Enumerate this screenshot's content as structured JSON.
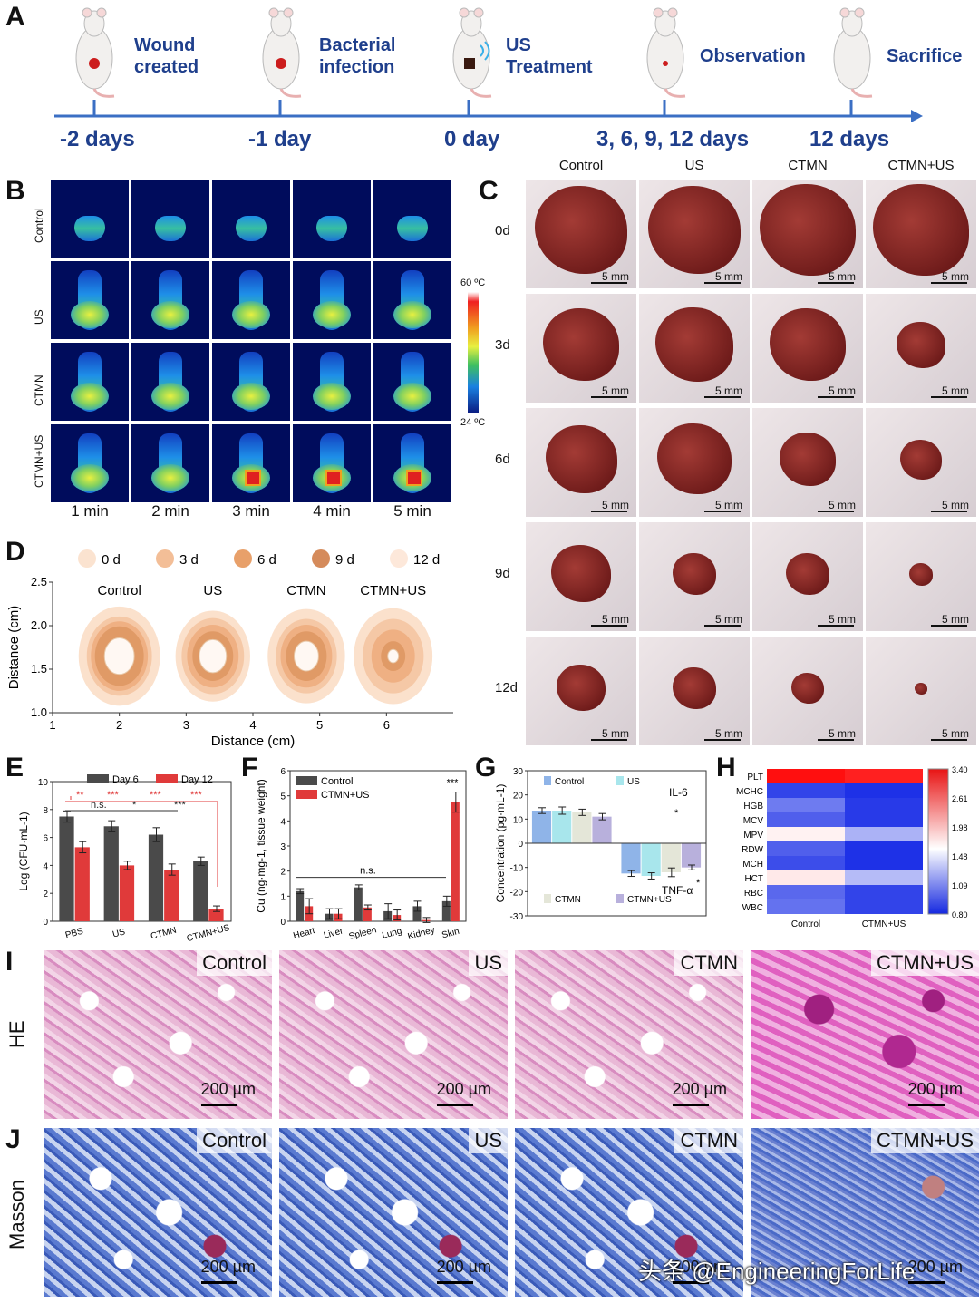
{
  "panel_labels": {
    "A": "A",
    "B": "B",
    "C": "C",
    "D": "D",
    "E": "E",
    "F": "F",
    "G": "G",
    "H": "H",
    "I": "I",
    "J": "J"
  },
  "timeline": {
    "events": [
      "Wound\ncreated",
      "Bacterial\ninfection",
      "US\nTreatment",
      "Observation",
      "Sacrifice"
    ],
    "days": [
      "-2 days",
      "-1 day",
      "0 day",
      "3, 6, 9, 12 days",
      "12 days"
    ],
    "colors": {
      "text": "#1f3f8c",
      "axis": "#3b6fc4"
    }
  },
  "thermal": {
    "rows": [
      "Control",
      "US",
      "CTMN",
      "CTMN+US"
    ],
    "times": [
      "1 min",
      "2 min",
      "3 min",
      "4 min",
      "5 min"
    ],
    "scale_max": "60 ºC",
    "scale_min": "24 ºC"
  },
  "wound_photos": {
    "columns": [
      "Control",
      "US",
      "CTMN",
      "CTMN+US"
    ],
    "rows": [
      "0d",
      "3d",
      "6d",
      "9d",
      "12d"
    ],
    "scale_bar": "5 mm",
    "wound_area_fraction": [
      [
        0.85,
        0.85,
        0.88,
        0.88
      ],
      [
        0.7,
        0.72,
        0.7,
        0.45
      ],
      [
        0.66,
        0.68,
        0.52,
        0.38
      ],
      [
        0.55,
        0.4,
        0.4,
        0.22
      ],
      [
        0.45,
        0.4,
        0.3,
        0.12
      ]
    ]
  },
  "chart_data": [
    {
      "id": "D",
      "type": "area",
      "legend": [
        "0 d",
        "3 d",
        "6 d",
        "9 d",
        "12 d"
      ],
      "groups": [
        "Control",
        "US",
        "CTMN",
        "CTMN+US"
      ],
      "xlabel": "Distance (cm)",
      "ylabel": "Distance (cm)",
      "xlim": [
        1,
        7
      ],
      "ylim": [
        1.0,
        2.5
      ],
      "x_ticks": [
        "1",
        "2",
        "3",
        "4",
        "5",
        "6"
      ],
      "y_ticks": [
        "1.0",
        "1.5",
        "2.0",
        "2.5"
      ],
      "group_centers_x": [
        2.0,
        3.4,
        4.8,
        6.1
      ],
      "center_y": 1.65,
      "radii_cm": [
        [
          0.6,
          0.48,
          0.42,
          0.36,
          0.22
        ],
        [
          0.55,
          0.46,
          0.38,
          0.3,
          0.2
        ],
        [
          0.57,
          0.45,
          0.38,
          0.3,
          0.18
        ],
        [
          0.58,
          0.45,
          0.32,
          0.18,
          0.08
        ]
      ]
    },
    {
      "id": "E",
      "type": "bar",
      "title": "",
      "ylabel": "Log (CFU·mL-1)",
      "ylim": [
        0,
        10
      ],
      "y_ticks": [
        "0",
        "2",
        "4",
        "6",
        "8",
        "10"
      ],
      "categories": [
        "PBS",
        "US",
        "CTMN",
        "CTMN+US"
      ],
      "series": [
        {
          "name": "Day 6",
          "color": "#4a4a4a",
          "values": [
            7.5,
            6.8,
            6.2,
            4.3
          ],
          "err": [
            0.4,
            0.4,
            0.5,
            0.3
          ]
        },
        {
          "name": "Day 12",
          "color": "#e03a3a",
          "values": [
            5.3,
            4.0,
            3.7,
            0.9
          ],
          "err": [
            0.4,
            0.3,
            0.4,
            0.2
          ]
        }
      ],
      "annotations": [
        "**",
        "***",
        "***",
        "***",
        "n.s.",
        "*",
        "***"
      ]
    },
    {
      "id": "F",
      "type": "bar",
      "ylabel": "Cu (ng·mg-1, tissue weight)",
      "ylim": [
        0,
        6
      ],
      "y_ticks": [
        "0",
        "1",
        "2",
        "3",
        "4",
        "5",
        "6"
      ],
      "categories": [
        "Heart",
        "Liver",
        "Spleen",
        "Lung",
        "Kidney",
        "Skin"
      ],
      "series": [
        {
          "name": "Control",
          "color": "#4a4a4a",
          "values": [
            1.2,
            0.3,
            1.35,
            0.4,
            0.6,
            0.8
          ],
          "err": [
            0.1,
            0.2,
            0.1,
            0.3,
            0.2,
            0.2
          ]
        },
        {
          "name": "CTMN+US",
          "color": "#e03a3a",
          "values": [
            0.6,
            0.3,
            0.55,
            0.25,
            0.05,
            4.75
          ],
          "err": [
            0.3,
            0.2,
            0.1,
            0.2,
            0.1,
            0.4
          ]
        }
      ],
      "annotations": [
        "n.s.",
        "***"
      ]
    },
    {
      "id": "G",
      "type": "bar",
      "ylabel": "Concentration (pg·mL-1)",
      "ylim": [
        -30,
        30
      ],
      "y_ticks": [
        "-30",
        "-20",
        "-10",
        "0",
        "10",
        "20",
        "30"
      ],
      "categories": [
        "IL-6",
        "TNF-α"
      ],
      "series": [
        {
          "name": "Control",
          "color": "#8fb4e8",
          "values": [
            13.5,
            -12.5
          ],
          "err": [
            1.2,
            1.2
          ]
        },
        {
          "name": "US",
          "color": "#a8e6ec",
          "values": [
            13.5,
            -13.5
          ],
          "err": [
            1.5,
            1.3
          ]
        },
        {
          "name": "CTMN",
          "color": "#e4e6d8",
          "values": [
            12.8,
            -12.0
          ],
          "err": [
            1.3,
            1.8
          ]
        },
        {
          "name": "CTMN+US",
          "color": "#b8b0dc",
          "values": [
            11.0,
            -10.0
          ],
          "err": [
            1.3,
            1.0
          ]
        }
      ],
      "annotations": [
        "*",
        "*"
      ]
    },
    {
      "id": "H",
      "type": "heatmap",
      "rows": [
        "PLT",
        "MCHC",
        "HGB",
        "MCV",
        "MPV",
        "RDW",
        "MCH",
        "HCT",
        "RBC",
        "WBC"
      ],
      "columns": [
        "Control",
        "CTMN+US"
      ],
      "values": [
        [
          3.4,
          3.3
        ],
        [
          0.95,
          0.85
        ],
        [
          1.25,
          0.9
        ],
        [
          1.1,
          0.9
        ],
        [
          2.05,
          1.55
        ],
        [
          1.1,
          0.85
        ],
        [
          1.0,
          0.85
        ],
        [
          2.1,
          1.6
        ],
        [
          1.15,
          0.95
        ],
        [
          1.2,
          0.95
        ]
      ],
      "colorbar_ticks": [
        "3.40",
        "2.61",
        "1.98",
        "1.48",
        "1.09",
        "0.80"
      ]
    }
  ],
  "histology": {
    "row_labels": [
      "HE",
      "Masson"
    ],
    "groups": [
      "Control",
      "US",
      "CTMN",
      "CTMN+US"
    ],
    "scale_bar": "200 µm"
  },
  "watermark": "头条 @EngineeringForLife"
}
